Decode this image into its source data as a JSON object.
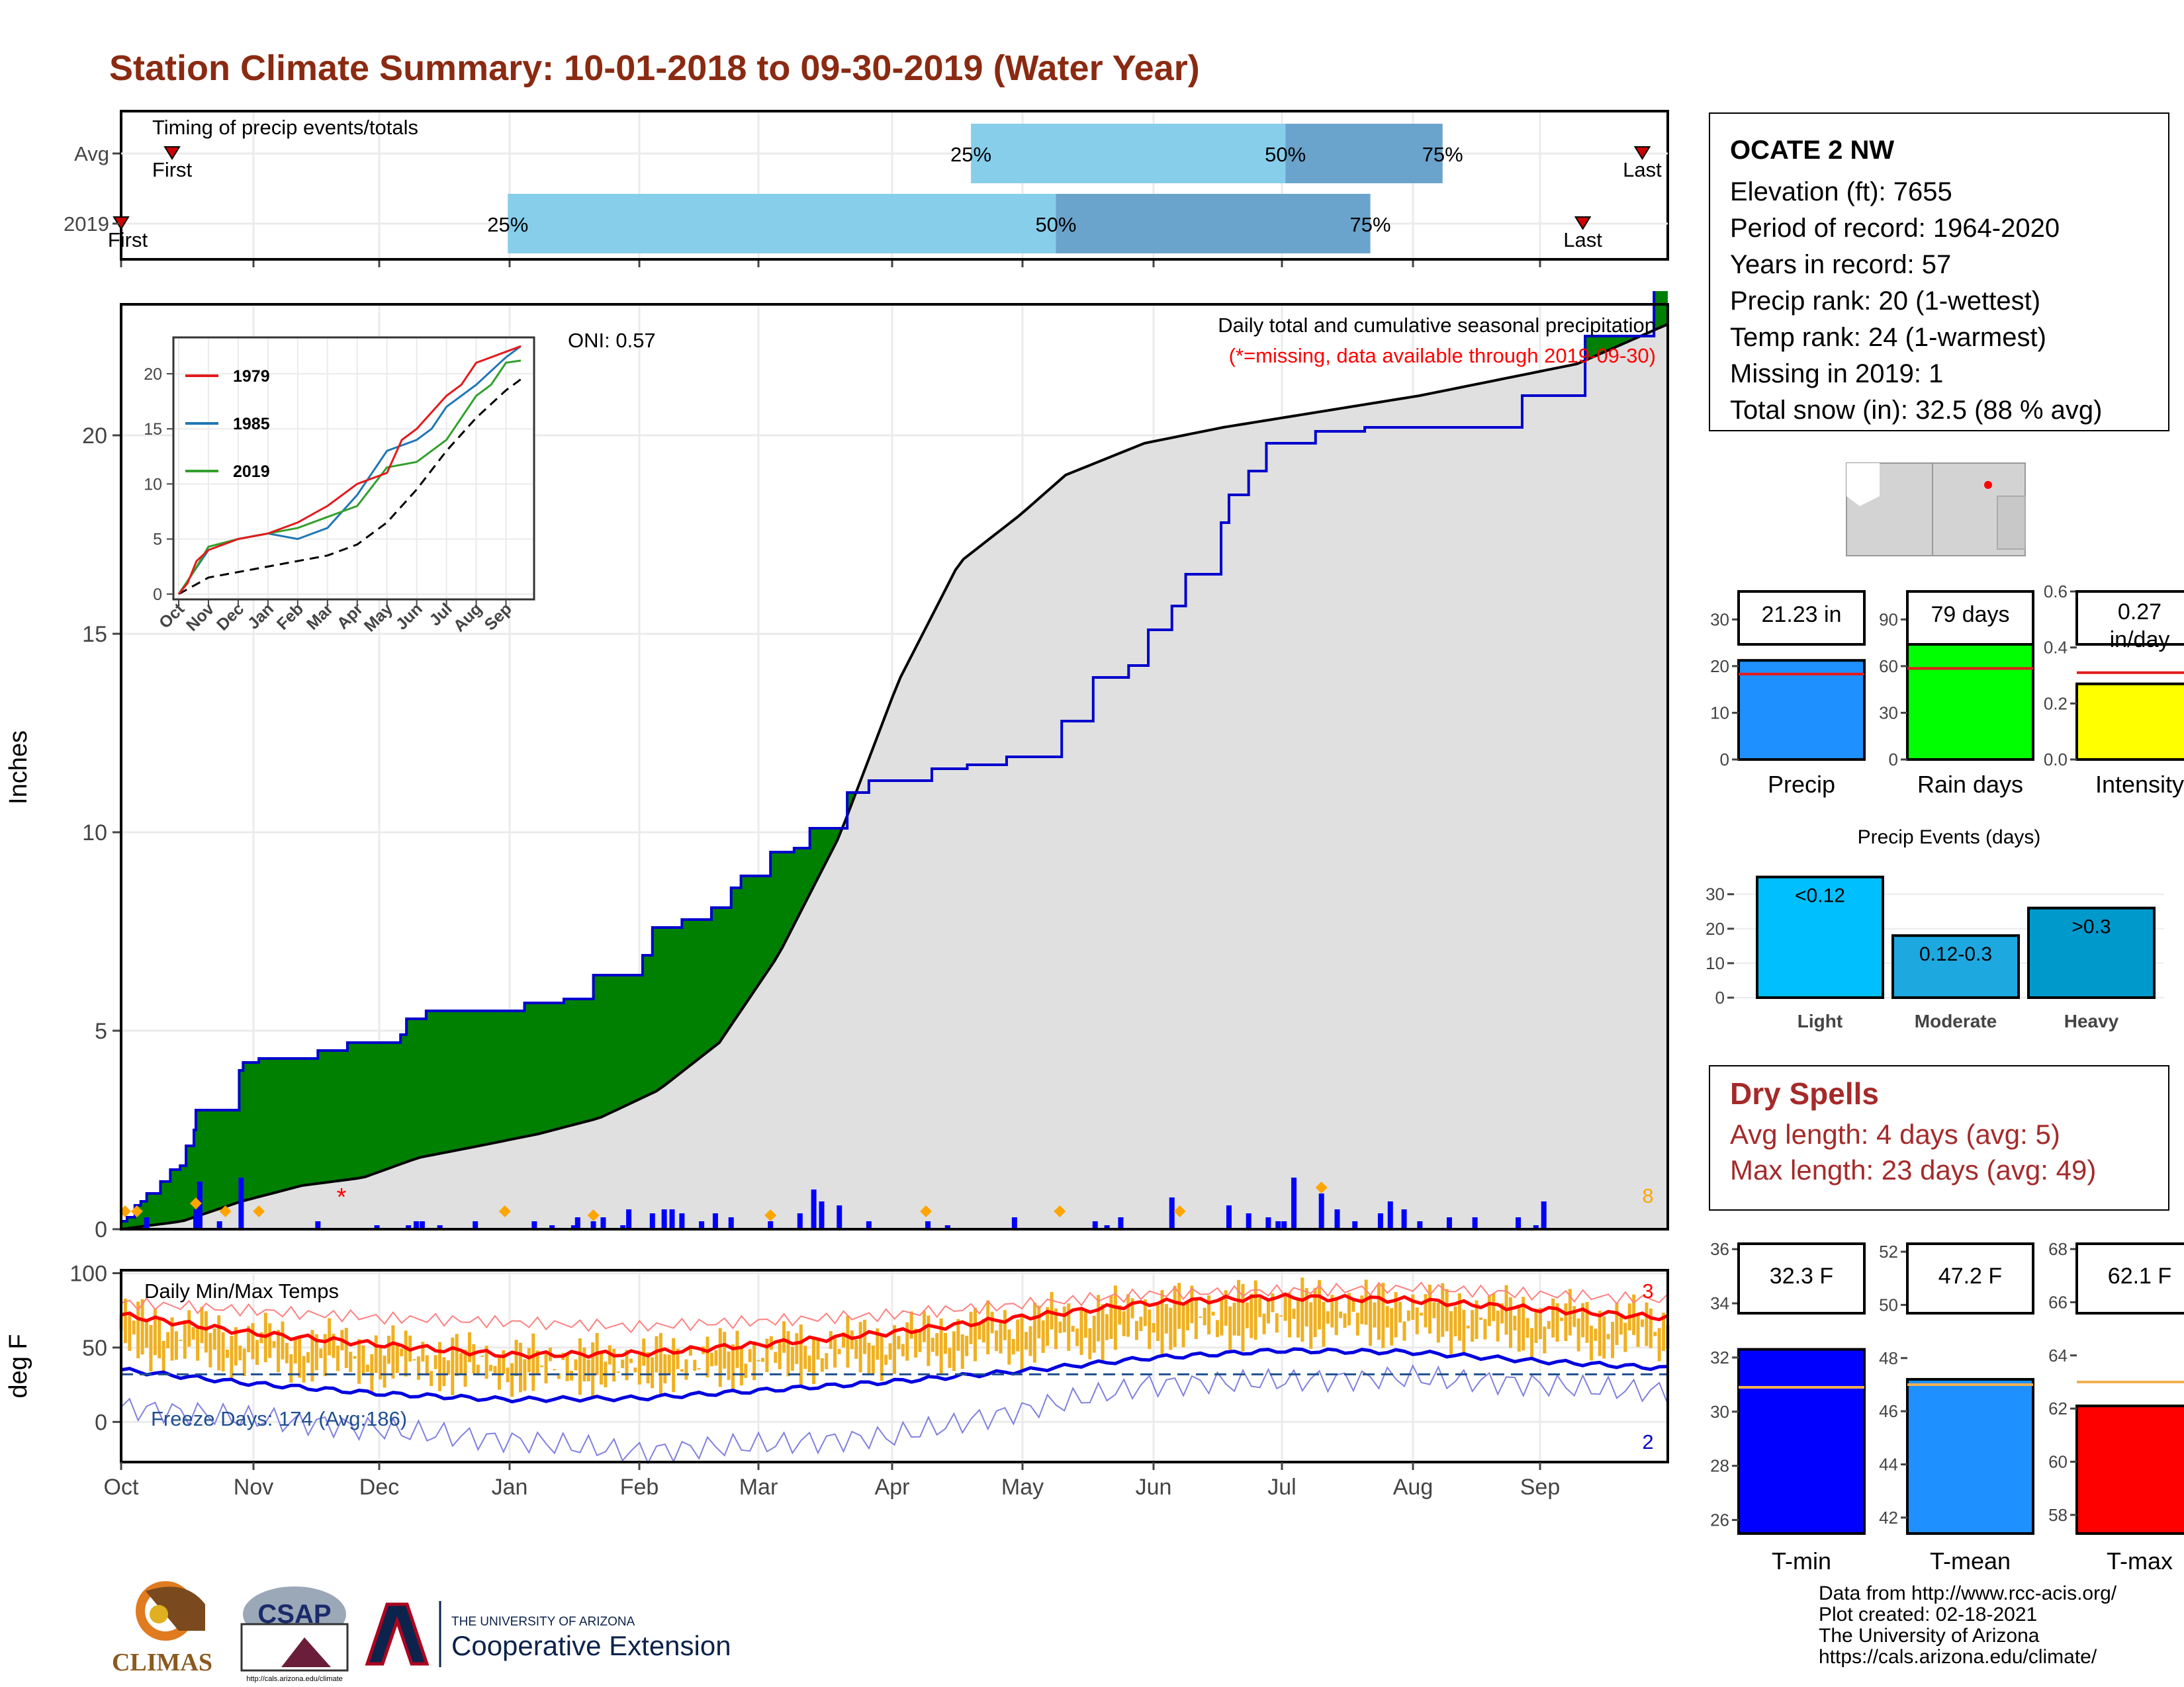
{
  "title": "Station Climate Summary: 10-01-2018 to 09-30-2019 (Water Year)",
  "colors": {
    "cum_fill": "#008000",
    "cum_line": "#0000cd",
    "avg_fill": "#e0e0e0",
    "bar25": "#87ceeb",
    "bar50": "#6aa4cc",
    "precip": "#1e90ff",
    "raindays": "#00ff00",
    "intensity": "#ffff00",
    "tmin": "#0000ff",
    "tmean": "#1e90ff",
    "tmax": "#ff0000",
    "temp_range": "#f0b020",
    "dry_text": "#a52a2a",
    "title": "#8b2a12"
  },
  "station": {
    "name": "OCATE 2 NW",
    "elevation": "Elevation (ft): 7655",
    "period": "Period of record: 1964-2020",
    "years": "Years in record: 57",
    "precip_rank": "Precip rank: 20 (1-wettest)",
    "temp_rank": "Temp rank: 24 (1-warmest)",
    "missing": "Missing in 2019: 1",
    "snow": "Total snow (in): 32.5 (88 % avg)"
  },
  "months": [
    "Oct",
    "Nov",
    "Dec",
    "Jan",
    "Feb",
    "Mar",
    "Apr",
    "May",
    "Jun",
    "Jul",
    "Aug",
    "Sep"
  ],
  "timing": {
    "label": "Timing of precip events/totals",
    "rows": [
      {
        "name": "Avg",
        "first_label": "First",
        "last_label": "Last",
        "first_day": 12,
        "last_day": 358,
        "p25_day": 200,
        "p50_day": 274,
        "p75_day": 311,
        "p25": "25%",
        "p50": "50%",
        "p75": "75%"
      },
      {
        "name": "2019",
        "first_label": "First",
        "last_label": "Last",
        "first_day": 0,
        "last_day": 344,
        "p25_day": 91,
        "p50_day": 220,
        "p75_day": 294,
        "p25": "25%",
        "p50": "50%",
        "p75": "75%"
      }
    ]
  },
  "chart_data": [
    {
      "type": "area",
      "name": "cumulative_precip",
      "title": "Daily total and cumulative seasonal precipitation",
      "subtitle": "(*=missing, data available through 2019-09-30)",
      "ylabel": "Inches",
      "ylim": [
        0,
        23.3
      ],
      "yticks": [
        0,
        5,
        10,
        15,
        20
      ],
      "oni": "ONI: 0.57",
      "corner_count": "8",
      "cumulative_2019": [
        [
          0,
          0.2
        ],
        [
          3,
          0.3
        ],
        [
          7,
          0.6
        ],
        [
          10,
          0.7
        ],
        [
          13,
          0.9
        ],
        [
          20,
          1.2
        ],
        [
          25,
          1.5
        ],
        [
          30,
          1.6
        ],
        [
          33,
          2.1
        ],
        [
          37,
          2.5
        ],
        [
          38,
          3.0
        ],
        [
          50,
          3.0
        ],
        [
          60,
          4.0
        ],
        [
          62,
          4.2
        ],
        [
          70,
          4.3
        ],
        [
          90,
          4.3
        ],
        [
          100,
          4.5
        ],
        [
          115,
          4.7
        ],
        [
          142,
          4.9
        ],
        [
          145,
          5.3
        ],
        [
          155,
          5.5
        ],
        [
          185,
          5.5
        ],
        [
          205,
          5.7
        ],
        [
          225,
          5.8
        ],
        [
          240,
          6.4
        ],
        [
          265,
          6.9
        ],
        [
          270,
          7.6
        ],
        [
          285,
          7.8
        ],
        [
          300,
          8.1
        ],
        [
          310,
          8.6
        ],
        [
          315,
          8.9
        ],
        [
          330,
          9.5
        ],
        [
          342,
          9.6
        ],
        [
          350,
          10.1
        ],
        [
          369,
          11.0
        ],
        [
          380,
          11.3
        ],
        [
          400,
          11.3
        ],
        [
          412,
          11.6
        ],
        [
          430,
          11.7
        ],
        [
          450,
          11.9
        ],
        [
          478,
          12.8
        ],
        [
          494,
          13.9
        ],
        [
          512,
          14.2
        ],
        [
          522,
          15.1
        ],
        [
          534,
          15.7
        ],
        [
          541,
          16.5
        ],
        [
          559,
          17.8
        ],
        [
          563,
          18.5
        ],
        [
          573,
          19.1
        ],
        [
          582,
          19.8
        ],
        [
          607,
          20.1
        ],
        [
          632,
          20.2
        ],
        [
          682,
          20.2
        ],
        [
          712,
          21.0
        ],
        [
          744,
          22.5
        ],
        [
          779,
          23.7
        ],
        [
          786,
          23.7
        ]
      ],
      "avg_cumulative": [
        [
          0,
          0.0
        ],
        [
          31,
          0.2
        ],
        [
          61,
          0.7
        ],
        [
          92,
          1.1
        ],
        [
          123,
          1.3
        ],
        [
          151,
          1.8
        ],
        [
          182,
          2.1
        ],
        [
          212,
          2.4
        ],
        [
          243,
          2.8
        ],
        [
          273,
          3.5
        ],
        [
          304,
          4.7
        ],
        [
          334,
          6.9
        ],
        [
          365,
          9.9
        ],
        [
          395,
          13.8
        ],
        [
          426,
          16.8
        ],
        [
          457,
          18.0
        ],
        [
          480,
          19.0
        ],
        [
          520,
          19.8
        ],
        [
          560,
          20.2
        ],
        [
          610,
          20.6
        ],
        [
          660,
          21.0
        ],
        [
          700,
          21.4
        ],
        [
          740,
          21.8
        ],
        [
          786,
          22.8
        ]
      ],
      "daily_bars": [
        [
          13,
          0.3
        ],
        [
          38,
          0.5
        ],
        [
          40,
          1.2
        ],
        [
          50,
          0.2
        ],
        [
          61,
          1.3
        ],
        [
          100,
          0.2
        ],
        [
          130,
          0.1
        ],
        [
          146,
          0.1
        ],
        [
          150,
          0.2
        ],
        [
          153,
          0.2
        ],
        [
          162,
          0.1
        ],
        [
          180,
          0.2
        ],
        [
          210,
          0.2
        ],
        [
          219,
          0.1
        ],
        [
          230,
          0.1
        ],
        [
          232,
          0.3
        ],
        [
          240,
          0.2
        ],
        [
          245,
          0.3
        ],
        [
          255,
          0.1
        ],
        [
          258,
          0.5
        ],
        [
          270,
          0.4
        ],
        [
          276,
          0.5
        ],
        [
          280,
          0.5
        ],
        [
          285,
          0.4
        ],
        [
          295,
          0.2
        ],
        [
          302,
          0.4
        ],
        [
          310,
          0.3
        ],
        [
          330,
          0.2
        ],
        [
          345,
          0.4
        ],
        [
          352,
          1.0
        ],
        [
          356,
          0.7
        ],
        [
          365,
          0.6
        ],
        [
          380,
          0.2
        ],
        [
          410,
          0.2
        ],
        [
          420,
          0.1
        ],
        [
          454,
          0.3
        ],
        [
          495,
          0.2
        ],
        [
          501,
          0.1
        ],
        [
          508,
          0.3
        ],
        [
          534,
          0.8
        ],
        [
          563,
          0.6
        ],
        [
          573,
          0.4
        ],
        [
          583,
          0.3
        ],
        [
          588,
          0.2
        ],
        [
          591,
          0.2
        ],
        [
          596,
          1.3
        ],
        [
          610,
          0.9
        ],
        [
          618,
          0.5
        ],
        [
          627,
          0.2
        ],
        [
          640,
          0.4
        ],
        [
          645,
          0.7
        ],
        [
          652,
          0.5
        ],
        [
          660,
          0.2
        ],
        [
          675,
          0.3
        ],
        [
          688,
          0.3
        ],
        [
          710,
          0.3
        ],
        [
          719,
          0.1
        ],
        [
          723,
          0.7
        ]
      ],
      "marks_orange_day": [
        2,
        8,
        38,
        53,
        70,
        195,
        240,
        330,
        409,
        477,
        538,
        610
      ],
      "missing_mark_day": 112
    },
    {
      "type": "line",
      "name": "daily_temps",
      "title": "Daily Min/Max Temps",
      "ylabel": "deg F",
      "ylim": [
        -27,
        102
      ],
      "yticks": [
        0,
        50,
        100
      ],
      "freeze_label": "Freeze Days: 174 (Avg:186)",
      "record_high_count": "3",
      "record_low_count": "2",
      "avg_max": [
        [
          0,
          72
        ],
        [
          30,
          60
        ],
        [
          61,
          52
        ],
        [
          91,
          45
        ],
        [
          122,
          46
        ],
        [
          150,
          52
        ],
        [
          181,
          60
        ],
        [
          211,
          70
        ],
        [
          242,
          80
        ],
        [
          272,
          84
        ],
        [
          303,
          82
        ],
        [
          333,
          76
        ],
        [
          364,
          70
        ]
      ],
      "avg_min": [
        [
          0,
          35
        ],
        [
          30,
          26
        ],
        [
          61,
          19
        ],
        [
          91,
          15
        ],
        [
          122,
          16
        ],
        [
          150,
          21
        ],
        [
          181,
          27
        ],
        [
          211,
          34
        ],
        [
          242,
          43
        ],
        [
          272,
          48
        ],
        [
          303,
          47
        ],
        [
          333,
          41
        ],
        [
          364,
          36
        ]
      ],
      "max_envelope": [
        [
          0,
          80
        ],
        [
          61,
          70
        ],
        [
          122,
          64
        ],
        [
          181,
          72
        ],
        [
          242,
          86
        ],
        [
          303,
          90
        ],
        [
          364,
          82
        ]
      ],
      "min_envelope": [
        [
          0,
          10
        ],
        [
          61,
          -5
        ],
        [
          122,
          -20
        ],
        [
          181,
          -10
        ],
        [
          242,
          25
        ],
        [
          303,
          30
        ],
        [
          364,
          20
        ]
      ]
    },
    {
      "type": "bar",
      "name": "precip_summary",
      "categories": [
        "Precip",
        "Rain days",
        "Intensity"
      ],
      "values": [
        21.23,
        79,
        0.27
      ],
      "avg_lines": [
        18.3,
        58.5,
        0.31
      ],
      "ylims": [
        [
          0,
          36
        ],
        [
          0,
          108
        ],
        [
          0,
          0.6
        ]
      ],
      "yticks": [
        [
          0,
          10,
          20,
          30
        ],
        [
          0,
          30,
          60,
          90
        ],
        [
          0.0,
          0.2,
          0.4,
          0.6
        ]
      ],
      "ytick_labels": [
        [
          "0",
          "10",
          "20",
          "30"
        ],
        [
          "0",
          "30",
          "60",
          "90"
        ],
        [
          "0.0",
          "0.2",
          "0.4",
          "0.6"
        ]
      ],
      "labels": [
        "21.23 in",
        "79 days",
        "0.27 in/day"
      ]
    },
    {
      "type": "bar",
      "name": "precip_events",
      "title": "Precip Events (days)",
      "categories": [
        "Light",
        "Moderate",
        "Heavy"
      ],
      "values": [
        35,
        18,
        26
      ],
      "labels": [
        "<0.12",
        "0.12-0.3",
        ">0.3"
      ],
      "ylim": [
        0,
        38
      ],
      "yticks": [
        0,
        10,
        20,
        30
      ]
    },
    {
      "type": "bar",
      "name": "temp_summary",
      "categories": [
        "T-min",
        "T-mean",
        "T-max"
      ],
      "values": [
        32.3,
        47.2,
        62.1
      ],
      "avg_lines": [
        30.9,
        47.0,
        63.0
      ],
      "ylims": [
        [
          25.5,
          36.2
        ],
        [
          41.4,
          52.3
        ],
        [
          57.3,
          68.2
        ]
      ],
      "yticks": [
        [
          26,
          28,
          30,
          32,
          34,
          36
        ],
        [
          42,
          44,
          46,
          48,
          50,
          52
        ],
        [
          58,
          60,
          62,
          64,
          66,
          68
        ]
      ],
      "labels": [
        "32.3 F",
        "47.2 F",
        "62.1 F"
      ]
    }
  ],
  "inset": {
    "type": "line",
    "yticks": [
      0,
      5,
      10,
      15,
      20
    ],
    "months": [
      "Oct",
      "Nov",
      "Dec",
      "Jan",
      "Feb",
      "Mar",
      "Apr",
      "May",
      "Jun",
      "Jul",
      "Aug",
      "Sep"
    ],
    "legend": [
      {
        "name": "1979",
        "color": "#e31a1c"
      },
      {
        "name": "1985",
        "color": "#1f78b4"
      },
      {
        "name": "2019",
        "color": "#33a02c"
      }
    ],
    "series_1979": [
      [
        0,
        0
      ],
      [
        0.3,
        1
      ],
      [
        0.6,
        3
      ],
      [
        1,
        4
      ],
      [
        2,
        5
      ],
      [
        3,
        5.5
      ],
      [
        4,
        6.5
      ],
      [
        5,
        8
      ],
      [
        6,
        10
      ],
      [
        7,
        11
      ],
      [
        7.5,
        14
      ],
      [
        8,
        15
      ],
      [
        9,
        18
      ],
      [
        9.5,
        19
      ],
      [
        10,
        21
      ],
      [
        11,
        22
      ],
      [
        11.5,
        22.5
      ]
    ],
    "series_1985": [
      [
        0,
        0
      ],
      [
        0.5,
        2
      ],
      [
        1,
        4
      ],
      [
        2,
        5
      ],
      [
        3,
        5.5
      ],
      [
        4,
        5
      ],
      [
        5,
        6
      ],
      [
        6,
        9
      ],
      [
        7,
        13
      ],
      [
        8,
        14
      ],
      [
        8.5,
        15
      ],
      [
        9,
        17
      ],
      [
        10,
        19
      ],
      [
        11,
        21.5
      ],
      [
        11.5,
        22.5
      ]
    ],
    "series_2019": [
      [
        0,
        0
      ],
      [
        0.5,
        2
      ],
      [
        1,
        4.3
      ],
      [
        2,
        5
      ],
      [
        3,
        5.5
      ],
      [
        4,
        6
      ],
      [
        5,
        7
      ],
      [
        6,
        8
      ],
      [
        7,
        11.5
      ],
      [
        8,
        12
      ],
      [
        9,
        14
      ],
      [
        10,
        18
      ],
      [
        10.5,
        19
      ],
      [
        11,
        21
      ],
      [
        11.5,
        21.2
      ]
    ],
    "series_avg": [
      [
        0,
        0
      ],
      [
        1,
        1.5
      ],
      [
        2,
        2
      ],
      [
        3,
        2.5
      ],
      [
        4,
        3
      ],
      [
        5,
        3.5
      ],
      [
        6,
        4.5
      ],
      [
        7,
        6.5
      ],
      [
        8,
        9.5
      ],
      [
        9,
        13
      ],
      [
        10,
        16
      ],
      [
        11,
        18.5
      ],
      [
        11.5,
        19.5
      ]
    ]
  },
  "dry_spells": {
    "title": "Dry Spells",
    "avg": "Avg length: 4 days (avg: 5)",
    "max": "Max length: 23 days (avg: 49)"
  },
  "footer": {
    "source": "Data from http://www.rcc-acis.org/",
    "created": "Plot created: 02-18-2021",
    "org": "The University of Arizona",
    "url": "https://cals.arizona.edu/climate/"
  },
  "logos": {
    "climas": "CLIMAS",
    "csap": "CSAP",
    "csap_url": "http://cals.arizona.edu/climate",
    "ua_small": "THE UNIVERSITY OF ARIZONA",
    "ua_big": "Cooperative Extension"
  }
}
